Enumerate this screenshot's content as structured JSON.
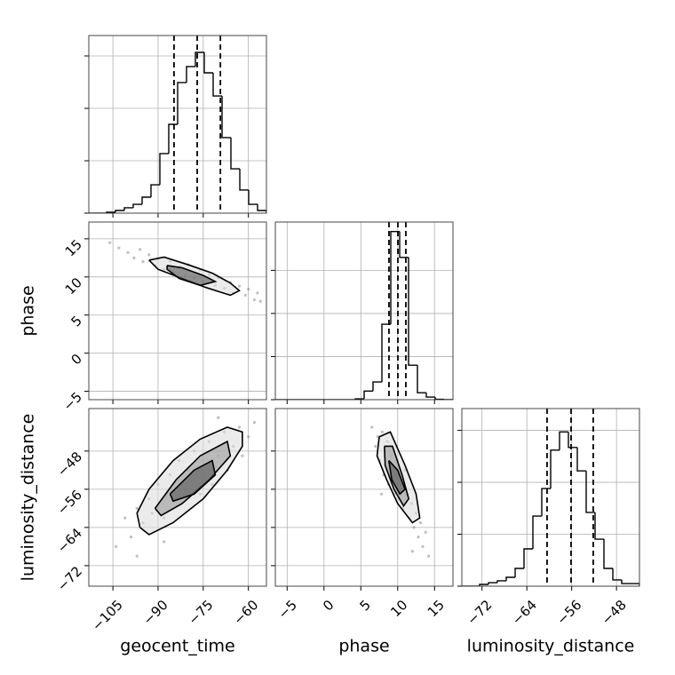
{
  "chart_data": [
    {
      "type": "histogram",
      "color": "#000000",
      "grid": true,
      "bins": [
        -113,
        -110.05,
        -107.1,
        -104.15,
        -101.2,
        -98.25,
        -95.3,
        -92.35,
        -89.4,
        -86.45,
        -83.5,
        -80.55,
        -77.6,
        -74.65,
        -71.7,
        -68.75,
        -65.8,
        -62.85,
        -59.9,
        -56.95,
        -54
      ],
      "counts": [
        0,
        0,
        17,
        51,
        102,
        169,
        305,
        542,
        1136,
        1695,
        2492,
        2797,
        3068,
        2678,
        2237,
        1441,
        847,
        441,
        169,
        51
      ],
      "quantiles": [
        -84.7,
        -77.0,
        -69.3
      ],
      "xlim": [
        -113,
        -54
      ],
      "xticks": [
        -105,
        -90,
        -75,
        -60
      ],
      "ylim": [
        0,
        3390
      ],
      "yticks": [
        0,
        1000,
        2000,
        3000
      ]
    },
    {
      "type": "scatter",
      "color": "#808080",
      "contour_color": "#000000",
      "grid": true,
      "x": [
        -106,
        -103,
        -100,
        -98,
        -96,
        -95,
        -93,
        -91,
        -90,
        -88,
        -86,
        -85,
        -83,
        -81,
        -80,
        -78,
        -76,
        -75,
        -73,
        -71,
        -70,
        -68,
        -66,
        -65,
        -63,
        -61,
        -60,
        -58,
        -57,
        -56
      ],
      "y": [
        14.5,
        13.8,
        13.2,
        12.5,
        13.6,
        12.0,
        12.9,
        11.5,
        12.4,
        11.0,
        12.1,
        10.6,
        11.3,
        10.2,
        11.6,
        9.8,
        10.9,
        9.4,
        10.3,
        8.9,
        9.9,
        8.5,
        9.3,
        7.9,
        8.8,
        7.6,
        8.4,
        7.0,
        7.9,
        6.8
      ],
      "contours": [
        {
          "x": [
            -93,
            -88,
            -80,
            -72,
            -66,
            -63,
            -66,
            -74,
            -82,
            -90,
            -93
          ],
          "y": [
            12.2,
            12.6,
            11.6,
            10.5,
            9.2,
            8.2,
            7.6,
            8.6,
            9.8,
            11.0,
            12.2
          ]
        },
        {
          "x": [
            -87,
            -82,
            -75,
            -71,
            -76,
            -83,
            -87,
            -87
          ],
          "y": [
            11.5,
            11.2,
            10.2,
            9.4,
            8.9,
            9.8,
            11.0,
            11.5
          ]
        }
      ],
      "xlim": [
        -113,
        -54
      ],
      "xticks": [
        -105,
        -90,
        -75,
        -60
      ],
      "ylim": [
        -6.1,
        17.2
      ],
      "ylabel": "phase",
      "yticks": [
        {
          "value": -5,
          "label": "−5"
        },
        {
          "value": 0,
          "label": "0"
        },
        {
          "value": 5,
          "label": "5"
        },
        {
          "value": 10,
          "label": "10"
        },
        {
          "value": 15,
          "label": "15"
        }
      ]
    },
    {
      "type": "histogram",
      "color": "#000000",
      "grid": true,
      "bins": [
        -6.6,
        -5.395,
        -4.19,
        -2.985,
        -1.78,
        -0.575,
        0.63,
        1.835,
        3.04,
        4.245,
        5.45,
        6.655,
        7.86,
        9.065,
        10.27,
        11.475,
        12.68,
        13.885,
        15.09,
        16.295,
        17.5
      ],
      "counts": [
        0,
        0,
        0,
        0,
        0,
        0,
        0,
        0,
        0,
        20,
        200,
        410,
        1750,
        3900,
        3300,
        800,
        160,
        60,
        10,
        0
      ],
      "quantiles": [
        8.82,
        10.03,
        11.11
      ],
      "xlim": [
        -6.6,
        17.5
      ],
      "xticks": [
        -5,
        0,
        5,
        10,
        15
      ],
      "ylim": [
        0,
        4120
      ],
      "yticks": [
        0,
        1000,
        2000,
        3000
      ]
    },
    {
      "type": "scatter",
      "color": "#808080",
      "contour_color": "#000000",
      "grid": true,
      "x": [
        -104,
        -101,
        -99,
        -97,
        -95,
        -93,
        -92,
        -90,
        -88,
        -86,
        -85,
        -83,
        -81,
        -80,
        -78,
        -76,
        -75,
        -73,
        -72,
        -70,
        -68,
        -67,
        -65,
        -63,
        -62,
        -60,
        -58,
        -97,
        -88,
        -70
      ],
      "y": [
        -68,
        -62,
        -66,
        -60,
        -63,
        -58,
        -61,
        -55,
        -62,
        -53,
        -58,
        -50,
        -56,
        -52,
        -48,
        -57,
        -51,
        -46,
        -55,
        -49,
        -44,
        -52,
        -47,
        -43,
        -49,
        -45,
        -42,
        -70,
        -67,
        -41
      ],
      "contours": [
        {
          "x": [
            -96,
            -97,
            -93,
            -85,
            -76,
            -67,
            -62,
            -62,
            -67,
            -75,
            -85,
            -93,
            -96
          ],
          "y": [
            -64,
            -61,
            -56,
            -50,
            -45.5,
            -43,
            -44,
            -47,
            -52,
            -58,
            -63,
            -65.5,
            -64
          ]
        },
        {
          "x": [
            -91,
            -84,
            -76,
            -67,
            -66,
            -73,
            -82,
            -89,
            -91
          ],
          "y": [
            -60,
            -54,
            -49,
            -46,
            -49,
            -54,
            -59,
            -61.5,
            -60
          ]
        },
        {
          "x": [
            -86,
            -78,
            -72,
            -71,
            -78,
            -85,
            -86
          ],
          "y": [
            -57,
            -52,
            -50,
            -53,
            -57,
            -58.5,
            -57
          ]
        }
      ],
      "xlim": [
        -113,
        -54
      ],
      "xlabel": "geocent_time",
      "xticks": [
        {
          "value": -105,
          "label": "−105"
        },
        {
          "value": -90,
          "label": "−90"
        },
        {
          "value": -75,
          "label": "−75"
        },
        {
          "value": -60,
          "label": "−60"
        }
      ],
      "ylim": [
        -76.3,
        -39.1
      ],
      "ylabel": "luminosity_distance",
      "yticks": [
        {
          "value": -72,
          "label": "−72"
        },
        {
          "value": -64,
          "label": "−64"
        },
        {
          "value": -56,
          "label": "−56"
        },
        {
          "value": -48,
          "label": "−48"
        }
      ]
    },
    {
      "type": "scatter",
      "color": "#808080",
      "contour_color": "#000000",
      "grid": true,
      "x": [
        6.5,
        7.0,
        7.3,
        7.6,
        7.9,
        8.1,
        8.3,
        8.6,
        8.8,
        9.0,
        9.2,
        9.5,
        9.7,
        10.0,
        10.2,
        10.5,
        10.7,
        11.0,
        11.3,
        11.6,
        11.9,
        12.2,
        12.5,
        12.8,
        13.1,
        13.4,
        13.8,
        14.2,
        7.8,
        12.0
      ],
      "y": [
        -43,
        -47,
        -45,
        -50,
        -44,
        -53,
        -48,
        -46,
        -55,
        -51,
        -49,
        -57,
        -53,
        -50,
        -58,
        -55,
        -60,
        -52,
        -57,
        -62,
        -59,
        -64,
        -61,
        -66,
        -63,
        -68,
        -65,
        -70,
        -57,
        -69
      ],
      "contours": [
        {
          "x": [
            7.5,
            9,
            11,
            12.5,
            13,
            12,
            10,
            8.5,
            7.2,
            7.5
          ],
          "y": [
            -45,
            -44,
            -51,
            -57,
            -62,
            -63,
            -59,
            -54,
            -49,
            -45
          ]
        },
        {
          "x": [
            8.2,
            9.3,
            10.6,
            11.5,
            10.8,
            9.5,
            8.3,
            8.2
          ],
          "y": [
            -47,
            -47,
            -53,
            -58,
            -59.5,
            -56,
            -51,
            -47
          ]
        },
        {
          "x": [
            8.8,
            10,
            11,
            10.3,
            9.2,
            8.8
          ],
          "y": [
            -50,
            -52,
            -56,
            -57,
            -54,
            -50
          ]
        }
      ],
      "xlim": [
        -6.6,
        17.5
      ],
      "xlabel": "phase",
      "xticks": [
        {
          "value": -5,
          "label": "−5"
        },
        {
          "value": 0,
          "label": "0"
        },
        {
          "value": 5,
          "label": "5"
        },
        {
          "value": 10,
          "label": "10"
        },
        {
          "value": 15,
          "label": "15"
        }
      ],
      "ylim": [
        -76.3,
        -39.1
      ],
      "yticks": [
        -72,
        -64,
        -56,
        -48
      ]
    },
    {
      "type": "histogram",
      "color": "#000000",
      "grid": true,
      "bins": [
        -75.6,
        -74.015,
        -72.43,
        -70.845,
        -69.26,
        -67.675,
        -66.09,
        -64.505,
        -62.92,
        -61.335,
        -59.75,
        -58.165,
        -56.58,
        -54.995,
        -53.41,
        -51.825,
        -50.24,
        -48.655,
        -47.07,
        -45.485,
        -43.9
      ],
      "counts": [
        0,
        0,
        34,
        68,
        103,
        171,
        342,
        718,
        1350,
        1880,
        2620,
        2970,
        2670,
        2220,
        1420,
        906,
        342,
        120,
        51,
        51
      ],
      "quantiles": [
        -60.39,
        -56.11,
        -52.15
      ],
      "xlim": [
        -75.6,
        -43.9
      ],
      "xlabel": "luminosity_distance",
      "xticks": [
        {
          "value": -72,
          "label": "−72"
        },
        {
          "value": -64,
          "label": "−64"
        },
        {
          "value": -56,
          "label": "−56"
        },
        {
          "value": -48,
          "label": "−48"
        }
      ],
      "ylim": [
        0,
        3420
      ],
      "yticks": [
        0,
        1000,
        2000,
        3000
      ]
    }
  ]
}
